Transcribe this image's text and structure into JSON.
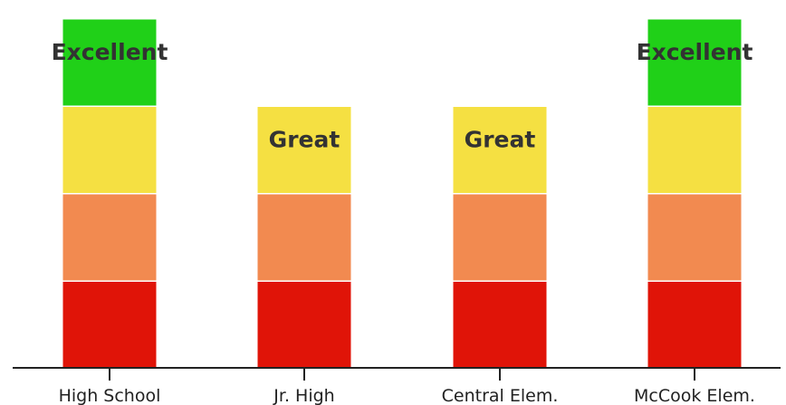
{
  "chart_data": {
    "type": "bar",
    "stacked": true,
    "categories": [
      "High School",
      "Jr. High",
      "Central Elem.",
      "McCook Elem."
    ],
    "levels": [
      {
        "level": 1,
        "color": "#e01408"
      },
      {
        "level": 2,
        "color": "#f28a50"
      },
      {
        "level": 3,
        "color": "#f5e042"
      },
      {
        "level": 4,
        "color": "#20d018"
      }
    ],
    "values": [
      4,
      3,
      3,
      4
    ],
    "data_labels": [
      "Excellent",
      "Great",
      "Great",
      "Excellent"
    ],
    "ylim": [
      0,
      4
    ],
    "grid": false,
    "title": "",
    "xlabel": "",
    "ylabel": ""
  }
}
